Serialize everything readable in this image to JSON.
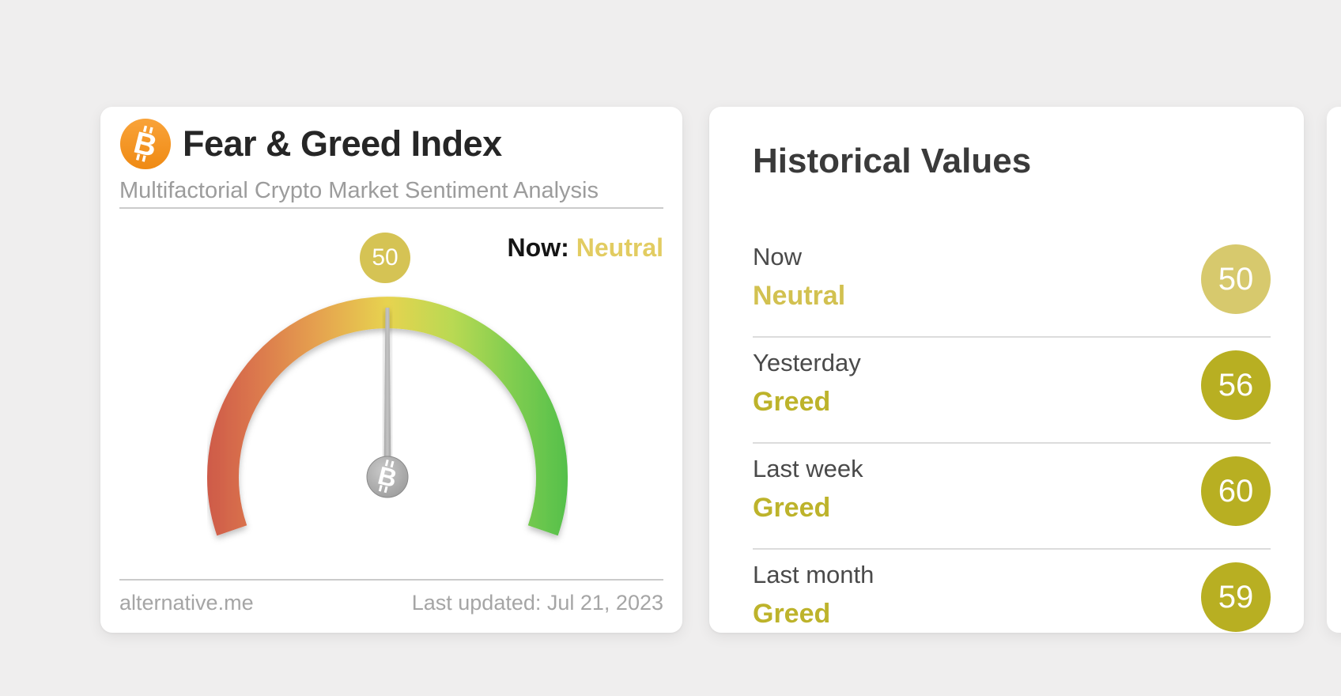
{
  "page": {
    "background_color": "#efeeee"
  },
  "fng_card": {
    "title": "Fear & Greed Index",
    "subtitle": "Multifactorial Crypto Market Sentiment Analysis",
    "now_label": "Now:",
    "now_sentiment": "Neutral",
    "gauge": {
      "value": 50,
      "min": 0,
      "max": 100,
      "sweep_degrees": 218,
      "bubble_value": "50"
    },
    "footer": {
      "source": "alternative.me",
      "last_updated": "Last updated: Jul 21, 2023"
    }
  },
  "historical_card": {
    "title": "Historical Values",
    "rows": [
      {
        "label": "Now",
        "classification": "Neutral",
        "value": "50",
        "badge_color": "#d7c96d",
        "classification_color": "#d2c150"
      },
      {
        "label": "Yesterday",
        "classification": "Greed",
        "value": "56",
        "badge_color": "#b8af22",
        "classification_color": "#bdb32b"
      },
      {
        "label": "Last week",
        "classification": "Greed",
        "value": "60",
        "badge_color": "#b8af22",
        "classification_color": "#bdb32b"
      },
      {
        "label": "Last month",
        "classification": "Greed",
        "value": "59",
        "badge_color": "#b8af22",
        "classification_color": "#bdb32b"
      }
    ]
  },
  "colors": {
    "background": "#efeeee",
    "card": "#ffffff",
    "bitcoin_orange": "#f7931a",
    "neutral_accent": "#d5c354",
    "neutral_text": "#e2cc61",
    "greed_accent": "#b8af22",
    "needle_gray": "#a5a5a5",
    "gauge_gradient": [
      "#ce5a49",
      "#da744d",
      "#e5a04f",
      "#e7d350",
      "#b9d952",
      "#7fcd50",
      "#55c04b"
    ]
  },
  "chart_data": {
    "type": "gauge",
    "title": "Fear & Greed Index",
    "value": 50,
    "min": 0,
    "max": 100,
    "classification": "Neutral",
    "scale": "red = Extreme Fear (0) through yellow = Neutral (50) to green = Extreme Greed (100)",
    "historical": [
      {
        "period": "Now",
        "value": 50,
        "classification": "Neutral"
      },
      {
        "period": "Yesterday",
        "value": 56,
        "classification": "Greed"
      },
      {
        "period": "Last week",
        "value": 60,
        "classification": "Greed"
      },
      {
        "period": "Last month",
        "value": 59,
        "classification": "Greed"
      }
    ]
  }
}
